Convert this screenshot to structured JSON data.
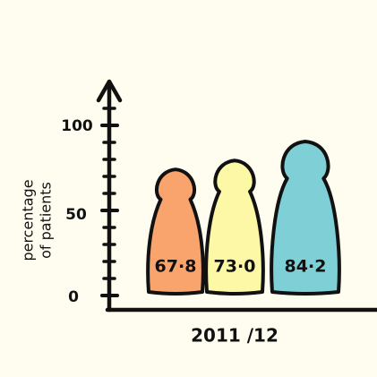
{
  "colors": {
    "background": "#fefdf0",
    "ink": "#111111",
    "bars": [
      "#f8a46c",
      "#fdf8a6",
      "#7fd0d6"
    ]
  },
  "chart_data": {
    "type": "bar",
    "style": "hand-drawn pawn-shaped figures",
    "categories": [
      "2011 /12"
    ],
    "series": [
      {
        "values": [
          67.8
        ]
      },
      {
        "values": [
          73.0
        ]
      },
      {
        "values": [
          84.2
        ]
      }
    ],
    "data_labels": [
      "67·8",
      "73·0",
      "84·2"
    ],
    "title": "",
    "xlabel": "",
    "ylabel": [
      "percentage",
      "of patients"
    ],
    "x_tick_labels": [
      "2011 /12"
    ],
    "y_tick_labels": [
      "0",
      "50",
      "100"
    ],
    "y_ticks": [
      0,
      50,
      100
    ],
    "ylim": [
      0,
      120
    ],
    "grid": false,
    "legend": "none"
  }
}
